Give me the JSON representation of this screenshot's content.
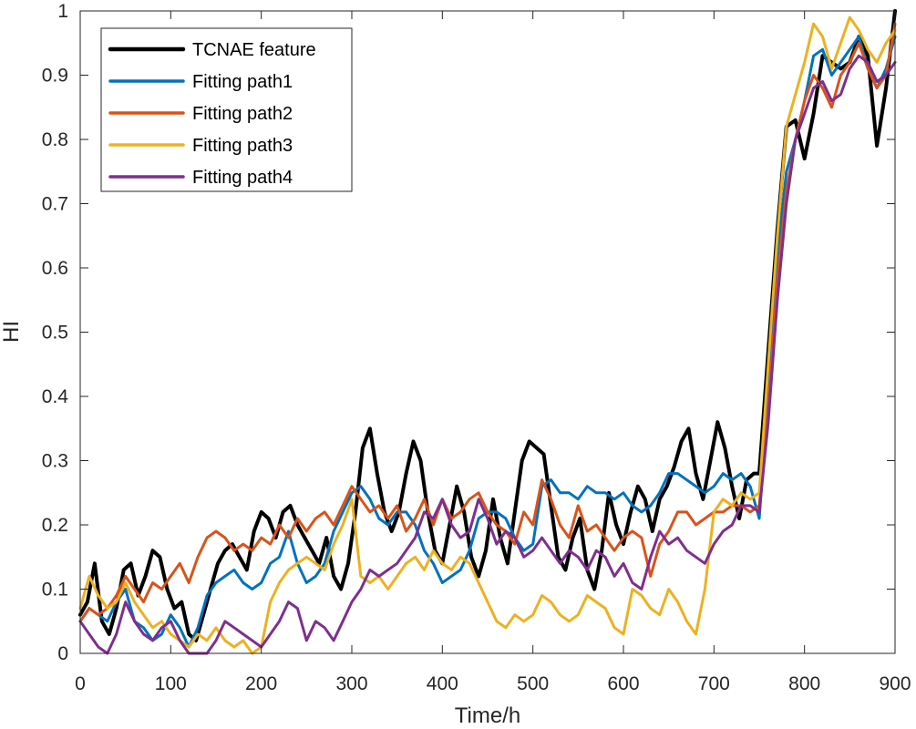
{
  "chart_data": {
    "type": "line",
    "title": "",
    "xlabel": "Time/h",
    "ylabel": "HI",
    "xlim": [
      0,
      900
    ],
    "ylim": [
      0,
      1
    ],
    "xticks": [
      0,
      100,
      200,
      300,
      400,
      500,
      600,
      700,
      800,
      900
    ],
    "yticks": [
      0,
      0.1,
      0.2,
      0.3,
      0.4,
      0.5,
      0.6,
      0.7,
      0.8,
      0.9,
      1
    ],
    "ytick_labels": [
      "0",
      "0.1",
      "0.2",
      "0.3",
      "0.4",
      "0.5",
      "0.6",
      "0.7",
      "0.8",
      "0.9",
      "1"
    ],
    "grid": false,
    "legend_position": "top-left",
    "series": [
      {
        "name": "TCNAE feature",
        "color": "#000000",
        "width": 4,
        "x": [
          0,
          8,
          16,
          24,
          32,
          40,
          48,
          56,
          64,
          72,
          80,
          88,
          96,
          104,
          112,
          120,
          128,
          136,
          144,
          152,
          160,
          168,
          176,
          184,
          192,
          200,
          208,
          216,
          224,
          232,
          240,
          248,
          256,
          264,
          272,
          280,
          288,
          296,
          304,
          312,
          320,
          328,
          336,
          344,
          352,
          360,
          368,
          376,
          384,
          392,
          400,
          408,
          416,
          424,
          432,
          440,
          448,
          456,
          464,
          472,
          480,
          488,
          496,
          504,
          512,
          520,
          528,
          536,
          544,
          552,
          560,
          568,
          576,
          584,
          592,
          600,
          608,
          616,
          624,
          632,
          640,
          648,
          656,
          664,
          672,
          680,
          688,
          696,
          704,
          712,
          720,
          728,
          736,
          744,
          750,
          760,
          770,
          780,
          790,
          800,
          810,
          820,
          830,
          840,
          850,
          860,
          870,
          880,
          890,
          900
        ],
        "y": [
          0.06,
          0.08,
          0.14,
          0.05,
          0.03,
          0.07,
          0.13,
          0.14,
          0.09,
          0.12,
          0.16,
          0.15,
          0.1,
          0.07,
          0.08,
          0.03,
          0.02,
          0.06,
          0.1,
          0.14,
          0.16,
          0.17,
          0.15,
          0.13,
          0.19,
          0.22,
          0.21,
          0.18,
          0.22,
          0.23,
          0.2,
          0.18,
          0.16,
          0.14,
          0.18,
          0.12,
          0.1,
          0.14,
          0.22,
          0.32,
          0.35,
          0.28,
          0.22,
          0.19,
          0.22,
          0.28,
          0.33,
          0.3,
          0.22,
          0.16,
          0.14,
          0.2,
          0.26,
          0.22,
          0.15,
          0.12,
          0.16,
          0.24,
          0.18,
          0.14,
          0.22,
          0.3,
          0.33,
          0.32,
          0.31,
          0.23,
          0.15,
          0.13,
          0.18,
          0.21,
          0.13,
          0.1,
          0.16,
          0.25,
          0.2,
          0.17,
          0.22,
          0.26,
          0.24,
          0.19,
          0.24,
          0.26,
          0.29,
          0.33,
          0.35,
          0.28,
          0.24,
          0.3,
          0.36,
          0.32,
          0.26,
          0.21,
          0.27,
          0.28,
          0.28,
          0.47,
          0.66,
          0.82,
          0.83,
          0.77,
          0.84,
          0.93,
          0.92,
          0.91,
          0.92,
          0.96,
          0.93,
          0.79,
          0.88,
          1.0
        ]
      },
      {
        "name": "Fitting path1",
        "color": "#0072BD",
        "width": 3,
        "x": [
          0,
          10,
          20,
          30,
          40,
          50,
          60,
          70,
          80,
          90,
          100,
          110,
          120,
          130,
          140,
          150,
          160,
          170,
          180,
          190,
          200,
          210,
          220,
          230,
          240,
          250,
          260,
          270,
          280,
          290,
          300,
          310,
          320,
          330,
          340,
          350,
          360,
          370,
          380,
          390,
          400,
          410,
          420,
          430,
          440,
          450,
          460,
          470,
          480,
          490,
          500,
          510,
          520,
          530,
          540,
          550,
          560,
          570,
          580,
          590,
          600,
          610,
          620,
          630,
          640,
          650,
          660,
          670,
          680,
          690,
          700,
          710,
          720,
          730,
          740,
          750,
          760,
          770,
          780,
          790,
          800,
          810,
          820,
          830,
          840,
          850,
          860,
          870,
          880,
          890,
          900
        ],
        "y": [
          0.05,
          0.07,
          0.06,
          0.05,
          0.08,
          0.1,
          0.05,
          0.04,
          0.02,
          0.03,
          0.06,
          0.04,
          0.01,
          0.04,
          0.09,
          0.11,
          0.12,
          0.13,
          0.11,
          0.1,
          0.11,
          0.14,
          0.15,
          0.19,
          0.14,
          0.11,
          0.12,
          0.14,
          0.19,
          0.22,
          0.25,
          0.26,
          0.24,
          0.21,
          0.2,
          0.22,
          0.22,
          0.2,
          0.16,
          0.14,
          0.11,
          0.12,
          0.13,
          0.16,
          0.21,
          0.22,
          0.22,
          0.21,
          0.18,
          0.16,
          0.17,
          0.26,
          0.27,
          0.25,
          0.25,
          0.24,
          0.26,
          0.25,
          0.25,
          0.24,
          0.25,
          0.23,
          0.22,
          0.23,
          0.25,
          0.28,
          0.28,
          0.27,
          0.26,
          0.25,
          0.26,
          0.28,
          0.27,
          0.28,
          0.26,
          0.21,
          0.4,
          0.62,
          0.75,
          0.8,
          0.86,
          0.93,
          0.94,
          0.9,
          0.92,
          0.94,
          0.96,
          0.91,
          0.88,
          0.91,
          0.96
        ]
      },
      {
        "name": "Fitting path2",
        "color": "#D95319",
        "width": 3,
        "x": [
          0,
          10,
          20,
          30,
          40,
          50,
          60,
          70,
          80,
          90,
          100,
          110,
          120,
          130,
          140,
          150,
          160,
          170,
          180,
          190,
          200,
          210,
          220,
          230,
          240,
          250,
          260,
          270,
          280,
          290,
          300,
          310,
          320,
          330,
          340,
          350,
          360,
          370,
          380,
          390,
          400,
          410,
          420,
          430,
          440,
          450,
          460,
          470,
          480,
          490,
          500,
          510,
          520,
          530,
          540,
          550,
          560,
          570,
          580,
          590,
          600,
          610,
          620,
          630,
          640,
          650,
          660,
          670,
          680,
          690,
          700,
          710,
          720,
          730,
          740,
          750,
          760,
          770,
          780,
          790,
          800,
          810,
          820,
          830,
          840,
          850,
          860,
          870,
          880,
          890,
          900
        ],
        "y": [
          0.05,
          0.07,
          0.06,
          0.07,
          0.09,
          0.12,
          0.1,
          0.08,
          0.11,
          0.1,
          0.12,
          0.14,
          0.11,
          0.15,
          0.18,
          0.19,
          0.18,
          0.16,
          0.17,
          0.16,
          0.18,
          0.17,
          0.2,
          0.18,
          0.21,
          0.19,
          0.21,
          0.22,
          0.2,
          0.23,
          0.26,
          0.24,
          0.22,
          0.23,
          0.21,
          0.23,
          0.19,
          0.21,
          0.24,
          0.2,
          0.24,
          0.21,
          0.22,
          0.24,
          0.25,
          0.22,
          0.2,
          0.19,
          0.17,
          0.22,
          0.2,
          0.27,
          0.24,
          0.2,
          0.18,
          0.23,
          0.19,
          0.2,
          0.18,
          0.16,
          0.18,
          0.19,
          0.18,
          0.12,
          0.17,
          0.19,
          0.22,
          0.22,
          0.2,
          0.21,
          0.22,
          0.22,
          0.23,
          0.23,
          0.22,
          0.23,
          0.38,
          0.58,
          0.72,
          0.8,
          0.86,
          0.9,
          0.88,
          0.85,
          0.9,
          0.92,
          0.95,
          0.91,
          0.88,
          0.9,
          0.98
        ]
      },
      {
        "name": "Fitting path3",
        "color": "#EDB120",
        "width": 3,
        "x": [
          0,
          10,
          20,
          30,
          40,
          50,
          60,
          70,
          80,
          90,
          100,
          110,
          120,
          130,
          140,
          150,
          160,
          170,
          180,
          190,
          200,
          210,
          220,
          230,
          240,
          250,
          260,
          270,
          280,
          290,
          300,
          310,
          320,
          330,
          340,
          350,
          360,
          370,
          380,
          390,
          400,
          410,
          420,
          430,
          440,
          450,
          460,
          470,
          480,
          490,
          500,
          510,
          520,
          530,
          540,
          550,
          560,
          570,
          580,
          590,
          600,
          610,
          620,
          630,
          640,
          650,
          660,
          670,
          680,
          690,
          700,
          710,
          720,
          730,
          740,
          750,
          760,
          770,
          780,
          790,
          800,
          810,
          820,
          830,
          840,
          850,
          860,
          870,
          880,
          890,
          900
        ],
        "y": [
          0.07,
          0.12,
          0.09,
          0.07,
          0.08,
          0.11,
          0.08,
          0.06,
          0.04,
          0.05,
          0.03,
          0.02,
          0.01,
          0.03,
          0.02,
          0.04,
          0.02,
          0.01,
          0.02,
          0.0,
          0.01,
          0.08,
          0.11,
          0.13,
          0.14,
          0.15,
          0.14,
          0.13,
          0.17,
          0.2,
          0.24,
          0.12,
          0.11,
          0.12,
          0.1,
          0.12,
          0.14,
          0.15,
          0.13,
          0.16,
          0.14,
          0.13,
          0.15,
          0.14,
          0.11,
          0.08,
          0.05,
          0.04,
          0.06,
          0.05,
          0.06,
          0.09,
          0.08,
          0.06,
          0.05,
          0.06,
          0.09,
          0.08,
          0.07,
          0.04,
          0.03,
          0.1,
          0.09,
          0.07,
          0.06,
          0.1,
          0.08,
          0.05,
          0.03,
          0.1,
          0.22,
          0.24,
          0.23,
          0.25,
          0.24,
          0.25,
          0.45,
          0.65,
          0.82,
          0.87,
          0.92,
          0.98,
          0.96,
          0.91,
          0.95,
          0.99,
          0.97,
          0.94,
          0.92,
          0.95,
          0.97
        ]
      },
      {
        "name": "Fitting path4",
        "color": "#7E2F8E",
        "width": 3,
        "x": [
          0,
          10,
          20,
          30,
          40,
          50,
          60,
          70,
          80,
          90,
          100,
          110,
          120,
          130,
          140,
          150,
          160,
          170,
          180,
          190,
          200,
          210,
          220,
          230,
          240,
          250,
          260,
          270,
          280,
          290,
          300,
          310,
          320,
          330,
          340,
          350,
          360,
          370,
          380,
          390,
          400,
          410,
          420,
          430,
          440,
          450,
          460,
          470,
          480,
          490,
          500,
          510,
          520,
          530,
          540,
          550,
          560,
          570,
          580,
          590,
          600,
          610,
          620,
          630,
          640,
          650,
          660,
          670,
          680,
          690,
          700,
          710,
          720,
          730,
          740,
          750,
          760,
          770,
          780,
          790,
          800,
          810,
          820,
          830,
          840,
          850,
          860,
          870,
          880,
          890,
          900
        ],
        "y": [
          0.05,
          0.03,
          0.01,
          0.0,
          0.03,
          0.08,
          0.05,
          0.03,
          0.02,
          0.04,
          0.05,
          0.02,
          0.0,
          0.0,
          0.0,
          0.02,
          0.05,
          0.04,
          0.03,
          0.02,
          0.01,
          0.03,
          0.05,
          0.08,
          0.07,
          0.02,
          0.05,
          0.04,
          0.02,
          0.05,
          0.08,
          0.1,
          0.13,
          0.12,
          0.13,
          0.14,
          0.16,
          0.18,
          0.22,
          0.21,
          0.24,
          0.2,
          0.18,
          0.19,
          0.24,
          0.21,
          0.17,
          0.19,
          0.18,
          0.15,
          0.16,
          0.18,
          0.16,
          0.14,
          0.16,
          0.15,
          0.13,
          0.16,
          0.15,
          0.12,
          0.14,
          0.11,
          0.1,
          0.15,
          0.19,
          0.17,
          0.18,
          0.16,
          0.15,
          0.14,
          0.17,
          0.19,
          0.2,
          0.23,
          0.23,
          0.22,
          0.36,
          0.55,
          0.7,
          0.8,
          0.84,
          0.88,
          0.89,
          0.86,
          0.87,
          0.91,
          0.93,
          0.92,
          0.89,
          0.9,
          0.92
        ]
      }
    ]
  }
}
